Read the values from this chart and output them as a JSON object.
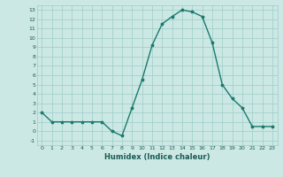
{
  "x": [
    0,
    1,
    2,
    3,
    4,
    5,
    6,
    7,
    8,
    9,
    10,
    11,
    12,
    13,
    14,
    15,
    16,
    17,
    18,
    19,
    20,
    21,
    22,
    23
  ],
  "y": [
    2,
    1,
    1,
    1,
    1,
    1,
    1,
    0,
    -0.5,
    2.5,
    5.5,
    9.2,
    11.5,
    12.3,
    13.0,
    12.8,
    12.3,
    9.5,
    5,
    3.5,
    2.5,
    0.5,
    0.5,
    0.5
  ],
  "line_color": "#1a7a6e",
  "marker": "*",
  "marker_size": 2.5,
  "bg_color": "#cce8e4",
  "grid_color": "#9eccc7",
  "xlabel": "Humidex (Indice chaleur)",
  "xlim": [
    -0.5,
    23.5
  ],
  "ylim": [
    -1.5,
    13.5
  ],
  "yticks": [
    -1,
    0,
    1,
    2,
    3,
    4,
    5,
    6,
    7,
    8,
    9,
    10,
    11,
    12,
    13
  ],
  "xticks": [
    0,
    1,
    2,
    3,
    4,
    5,
    6,
    7,
    8,
    9,
    10,
    11,
    12,
    13,
    14,
    15,
    16,
    17,
    18,
    19,
    20,
    21,
    22,
    23
  ],
  "tick_fontsize": 4.5,
  "xlabel_fontsize": 6.0,
  "line_width": 1.0,
  "text_color": "#1a5a54"
}
